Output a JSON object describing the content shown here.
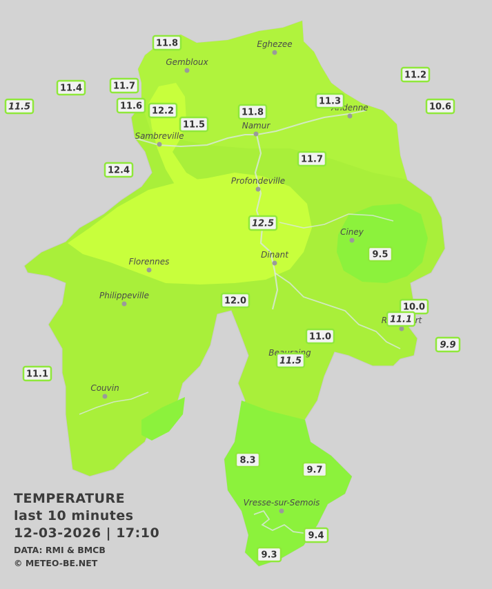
{
  "caption": {
    "title": "TEMPERATURE",
    "period": "last 10 minutes",
    "datetime": "12-03-2026  |  17:10",
    "source": "DATA: RMI & BMCB",
    "copyright": "© METEO-BE.NET"
  },
  "colors": {
    "background": "#d3d3d3",
    "zone_warm": "#c6ff3a",
    "zone_mild": "#a9ef3a",
    "zone_cool": "#8cf23a",
    "label_border": "#8fe83a",
    "label_fill": "#f2f2f2"
  },
  "cities": [
    {
      "name": "Eghezee"
    },
    {
      "name": "Gembloux"
    },
    {
      "name": "Andenne"
    },
    {
      "name": "Namur"
    },
    {
      "name": "Sambreville"
    },
    {
      "name": "Profondeville"
    },
    {
      "name": "Ciney"
    },
    {
      "name": "Dinant"
    },
    {
      "name": "Florennes"
    },
    {
      "name": "Philippeville"
    },
    {
      "name": "Rochefort"
    },
    {
      "name": "Beauraing"
    },
    {
      "name": "Couvin"
    },
    {
      "name": "Vresse-sur-Semois"
    }
  ],
  "readings": [
    {
      "value": "11.8",
      "italic": false
    },
    {
      "value": "11.4",
      "italic": false
    },
    {
      "value": "11.7",
      "italic": false
    },
    {
      "value": "11.5",
      "italic": true
    },
    {
      "value": "11.6",
      "italic": false
    },
    {
      "value": "12.2",
      "italic": false
    },
    {
      "value": "11.5",
      "italic": false
    },
    {
      "value": "11.8",
      "italic": false
    },
    {
      "value": "11.3",
      "italic": false
    },
    {
      "value": "11.2",
      "italic": false
    },
    {
      "value": "10.6",
      "italic": false
    },
    {
      "value": "12.4",
      "italic": false
    },
    {
      "value": "11.7",
      "italic": false
    },
    {
      "value": "12.5",
      "italic": true
    },
    {
      "value": "9.5",
      "italic": false
    },
    {
      "value": "12.0",
      "italic": false
    },
    {
      "value": "10.0",
      "italic": false
    },
    {
      "value": "11.1",
      "italic": true
    },
    {
      "value": "11.0",
      "italic": false
    },
    {
      "value": "9.9",
      "italic": true
    },
    {
      "value": "11.5",
      "italic": true
    },
    {
      "value": "11.1",
      "italic": false
    },
    {
      "value": "8.3",
      "italic": false
    },
    {
      "value": "9.7",
      "italic": false
    },
    {
      "value": "9.4",
      "italic": false
    },
    {
      "value": "9.3",
      "italic": false
    }
  ]
}
